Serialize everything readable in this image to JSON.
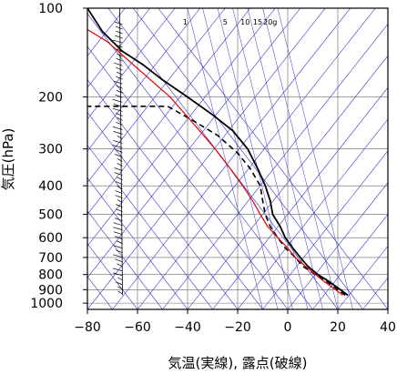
{
  "chart_data": {
    "type": "line",
    "title": "",
    "xlabel": "気温(実線), 露点(破線)",
    "ylabel": "気圧(hPa)",
    "xlim": [
      -80,
      40
    ],
    "ylim": [
      1000,
      100
    ],
    "y_scale": "log",
    "x_ticks": [
      -80,
      -60,
      -40,
      -20,
      0,
      20,
      40
    ],
    "x_tick_labels": [
      "−80",
      "−60",
      "−40",
      "−20",
      "0",
      "20",
      "40"
    ],
    "y_ticks": [
      100,
      200,
      300,
      400,
      500,
      600,
      700,
      800,
      900,
      1000
    ],
    "y_tick_labels": [
      "100",
      "200",
      "300",
      "400",
      "500",
      "600",
      "700",
      "800",
      "900",
      "1000"
    ],
    "mixing_ratio_labels": [
      "1",
      "5",
      "10",
      "15",
      "20g"
    ],
    "grid": true,
    "colors": {
      "temperature": "#000000",
      "dewpoint": "#000000",
      "reference": "#dd0000",
      "background_lines": "#3333cc",
      "frame": "#000000"
    },
    "series": [
      {
        "style": "solid",
        "points": [
          [
            24,
            940
          ],
          [
            21,
            900
          ],
          [
            17,
            850
          ],
          [
            12,
            800
          ],
          [
            8,
            750
          ],
          [
            5,
            700
          ],
          [
            2,
            650
          ],
          [
            -1,
            600
          ],
          [
            -3,
            550
          ],
          [
            -6,
            500
          ],
          [
            -7,
            450
          ],
          [
            -9,
            400
          ],
          [
            -12,
            350
          ],
          [
            -16,
            300
          ],
          [
            -22,
            260
          ],
          [
            -30,
            230
          ],
          [
            -40,
            200
          ],
          [
            -50,
            175
          ],
          [
            -58,
            155
          ],
          [
            -66,
            140
          ],
          [
            -74,
            120
          ],
          [
            -80,
            100
          ]
        ]
      },
      {
        "style": "dashed",
        "points": [
          [
            23,
            940
          ],
          [
            20,
            900
          ],
          [
            16,
            850
          ],
          [
            11,
            800
          ],
          [
            6,
            750
          ],
          [
            3,
            700
          ],
          [
            -1,
            650
          ],
          [
            -4,
            600
          ],
          [
            -7,
            550
          ],
          [
            -9,
            500
          ],
          [
            -10,
            450
          ],
          [
            -11,
            400
          ],
          [
            -15,
            350
          ],
          [
            -20,
            310
          ],
          [
            -28,
            270
          ],
          [
            -38,
            240
          ],
          [
            -48,
            215
          ],
          [
            -82,
            215
          ]
        ]
      },
      {
        "style": "solid-red",
        "points": [
          [
            22,
            940
          ],
          [
            19,
            900
          ],
          [
            15,
            850
          ],
          [
            11,
            800
          ],
          [
            7,
            750
          ],
          [
            3,
            700
          ],
          [
            0,
            650
          ],
          [
            -4,
            600
          ],
          [
            -8,
            550
          ],
          [
            -11,
            500
          ],
          [
            -14,
            450
          ],
          [
            -18,
            400
          ],
          [
            -23,
            350
          ],
          [
            -29,
            300
          ],
          [
            -37,
            250
          ],
          [
            -47,
            200
          ],
          [
            -60,
            160
          ],
          [
            -72,
            130
          ],
          [
            -86,
            110
          ]
        ]
      }
    ]
  }
}
